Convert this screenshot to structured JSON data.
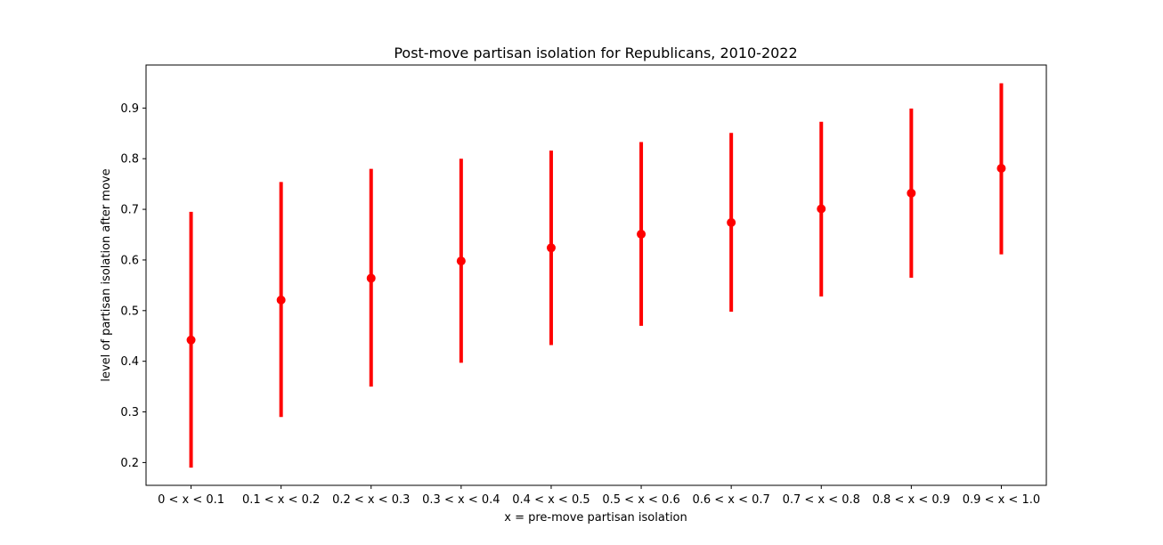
{
  "chart_data": {
    "type": "scatter",
    "title": "Post-move partisan isolation for Republicans, 2010-2022",
    "xlabel": "x = pre-move partisan isolation",
    "ylabel": "level of partisan isolation after move",
    "categories": [
      "0 < x < 0.1",
      "0.1 < x < 0.2",
      "0.2 < x < 0.3",
      "0.3 < x < 0.4",
      "0.4 < x < 0.5",
      "0.5 < x < 0.6",
      "0.6 < x < 0.7",
      "0.7 < x < 0.8",
      "0.8 < x < 0.9",
      "0.9 < x < 1.0"
    ],
    "series": [
      {
        "values": [
          0.442,
          0.521,
          0.564,
          0.598,
          0.624,
          0.651,
          0.674,
          0.701,
          0.732,
          0.781
        ],
        "lower": [
          0.19,
          0.29,
          0.35,
          0.397,
          0.432,
          0.47,
          0.498,
          0.528,
          0.565,
          0.611
        ],
        "upper": [
          0.695,
          0.754,
          0.78,
          0.8,
          0.816,
          0.833,
          0.851,
          0.873,
          0.899,
          0.949
        ],
        "color": "#ff0000"
      }
    ],
    "ylim": [
      0.155,
      0.985
    ],
    "yticks": [
      0.2,
      0.3,
      0.4,
      0.5,
      0.6,
      0.7,
      0.8,
      0.9
    ],
    "grid": false,
    "legend": "none"
  }
}
